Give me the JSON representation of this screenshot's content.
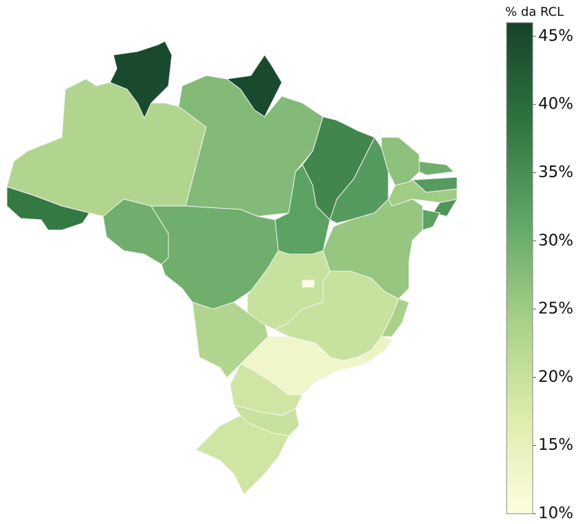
{
  "chart_data": {
    "type": "choropleth",
    "colorbar_title": "% da RCL",
    "values": [
      23,
      38,
      45,
      45,
      28,
      36,
      33,
      27,
      30,
      33,
      25,
      34,
      32,
      26,
      32,
      30,
      30,
      23,
      20,
      10,
      20,
      24,
      14,
      13,
      19,
      20,
      19
    ],
    "zlim": [
      10,
      46
    ],
    "zticks": [
      {
        "value": 10,
        "label": "10%"
      },
      {
        "value": 15,
        "label": "15%"
      },
      {
        "value": 20,
        "label": "20%"
      },
      {
        "value": 25,
        "label": "25%"
      },
      {
        "value": 30,
        "label": "30%"
      },
      {
        "value": 35,
        "label": "35%"
      },
      {
        "value": 40,
        "label": "40%"
      },
      {
        "value": 45,
        "label": "45%"
      }
    ],
    "colors": [
      "#fffde0",
      "#dcecac",
      "#a6cf88",
      "#5fa565",
      "#2f7340",
      "#16432a"
    ]
  }
}
